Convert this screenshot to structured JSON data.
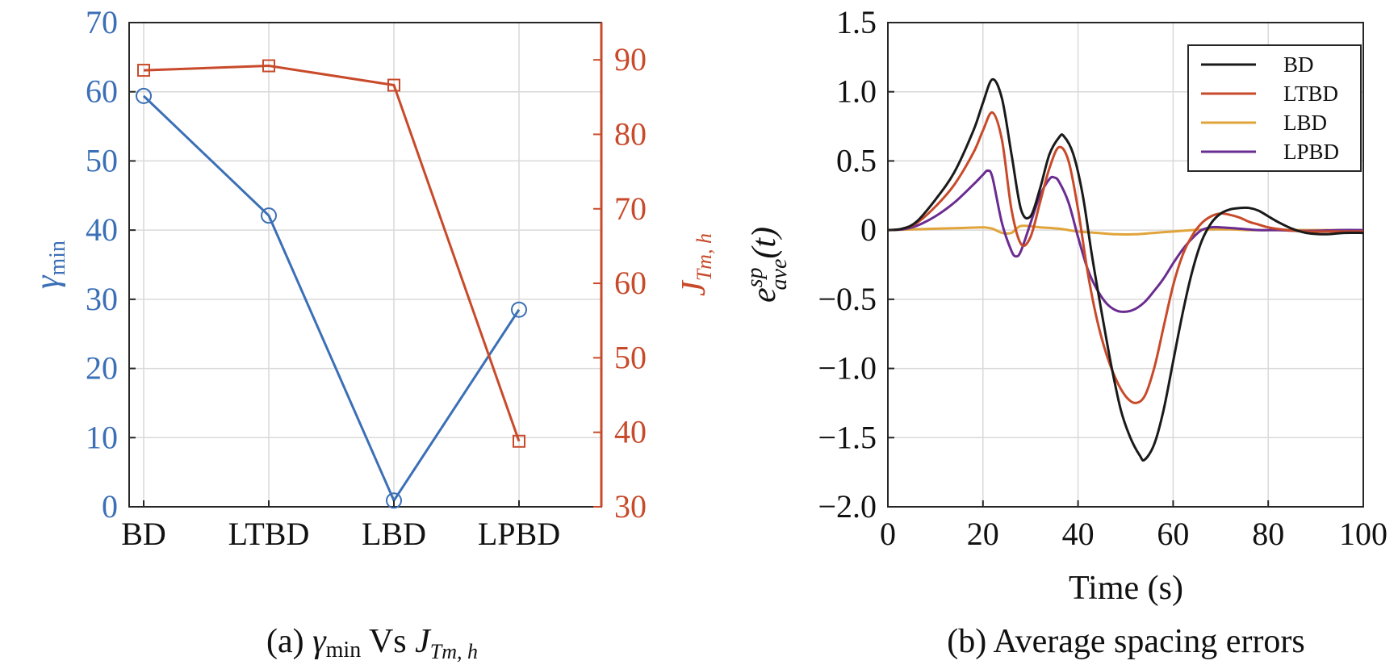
{
  "chart_data": [
    {
      "type": "line",
      "caption": {
        "prefix": "(a) ",
        "sym": "γ",
        "sub": "min",
        "mid": " Vs ",
        "sym2": "J",
        "sub2": "Tm, h"
      },
      "categories": [
        "BD",
        "LTBD",
        "LBD",
        "LPBD"
      ],
      "left_axis": {
        "label_sym": "γ",
        "label_sub": "min",
        "ylim": [
          0,
          70
        ],
        "ticks": [
          0,
          10,
          20,
          30,
          40,
          50,
          60,
          70
        ],
        "color": "#3b6fb6"
      },
      "right_axis": {
        "label_sym": "J",
        "label_sub": "Tm, h",
        "ylim": [
          30,
          95
        ],
        "ticks": [
          30,
          40,
          50,
          60,
          70,
          80,
          90
        ],
        "color": "#c84a2a"
      },
      "series": [
        {
          "axis": "left",
          "marker": "circle",
          "color": "#3b6fb6",
          "values": [
            59.4,
            42.1,
            0.9,
            28.5
          ]
        },
        {
          "axis": "right",
          "marker": "square",
          "color": "#c84a2a",
          "values": [
            88.6,
            89.2,
            86.6,
            38.8
          ]
        }
      ],
      "grid": true
    },
    {
      "type": "line",
      "caption": "(b) Average spacing errors",
      "xlabel": "Time (s)",
      "ylabel": {
        "base": "e",
        "sup": "sp",
        "sub": "ave",
        "tail": "(t)"
      },
      "xlim": [
        0,
        100
      ],
      "ylim": [
        -2.0,
        1.5
      ],
      "xticks": [
        0,
        20,
        40,
        60,
        80,
        100
      ],
      "yticks": [
        -2.0,
        -1.5,
        -1.0,
        -0.5,
        0,
        0.5,
        1.0,
        1.5
      ],
      "ytick_labels": [
        "−2.0",
        "−1.5",
        "−1.0",
        "−0.5",
        "0",
        "0.5",
        "1.0",
        "1.5"
      ],
      "legend_position": "top-right",
      "grid": true,
      "series": [
        {
          "name": "BD",
          "color": "#1a1a1a",
          "x": [
            0,
            3,
            6,
            10,
            14,
            18,
            20,
            22,
            24,
            26,
            28,
            30,
            32,
            34,
            36,
            37,
            39,
            41,
            43,
            45,
            47,
            49,
            51,
            53,
            54,
            56,
            58,
            60,
            62,
            64,
            66,
            68,
            70,
            72,
            74,
            76,
            78,
            80,
            82,
            85,
            88,
            92,
            96,
            100
          ],
          "y": [
            0,
            0.01,
            0.06,
            0.22,
            0.42,
            0.72,
            0.92,
            1.09,
            0.95,
            0.55,
            0.15,
            0.1,
            0.3,
            0.55,
            0.67,
            0.68,
            0.55,
            0.25,
            -0.2,
            -0.6,
            -0.98,
            -1.3,
            -1.5,
            -1.63,
            -1.66,
            -1.55,
            -1.3,
            -0.95,
            -0.6,
            -0.3,
            -0.08,
            0.05,
            0.12,
            0.15,
            0.16,
            0.16,
            0.14,
            0.1,
            0.06,
            0.01,
            -0.02,
            -0.03,
            -0.02,
            -0.02
          ]
        },
        {
          "name": "LTBD",
          "color": "#c84a2a",
          "x": [
            0,
            3,
            6,
            10,
            14,
            18,
            20,
            22,
            24,
            26,
            28,
            30,
            32,
            34,
            36,
            38,
            40,
            42,
            44,
            46,
            48,
            50,
            52,
            54,
            56,
            58,
            60,
            62,
            64,
            66,
            68,
            70,
            72,
            74,
            76,
            78,
            80,
            84,
            88,
            92,
            96,
            100
          ],
          "y": [
            0,
            0.01,
            0.05,
            0.17,
            0.33,
            0.56,
            0.72,
            0.85,
            0.65,
            0.15,
            -0.1,
            -0.05,
            0.2,
            0.45,
            0.6,
            0.5,
            0.15,
            -0.3,
            -0.65,
            -0.9,
            -1.08,
            -1.2,
            -1.25,
            -1.2,
            -1.0,
            -0.7,
            -0.4,
            -0.18,
            -0.04,
            0.05,
            0.1,
            0.12,
            0.11,
            0.09,
            0.06,
            0.04,
            0.02,
            0,
            -0.01,
            -0.01,
            -0.01,
            -0.01
          ]
        },
        {
          "name": "LBD",
          "color": "#e0a43a",
          "x": [
            0,
            5,
            10,
            15,
            20,
            22,
            24,
            26,
            28,
            32,
            36,
            40,
            44,
            48,
            52,
            56,
            60,
            64,
            68,
            72,
            76,
            80,
            85,
            90,
            95,
            100
          ],
          "y": [
            0,
            0.005,
            0.01,
            0.015,
            0.02,
            0.01,
            -0.02,
            -0.02,
            0.03,
            0.02,
            0.01,
            -0.01,
            -0.02,
            -0.03,
            -0.03,
            -0.02,
            -0.01,
            0,
            0.005,
            0.005,
            0,
            0,
            0,
            0,
            0,
            0
          ]
        },
        {
          "name": "LPBD",
          "color": "#6a2c91",
          "x": [
            0,
            3,
            6,
            10,
            14,
            18,
            20,
            21,
            22,
            24,
            26,
            27,
            28,
            30,
            32,
            34,
            35,
            36,
            38,
            40,
            42,
            44,
            46,
            48,
            50,
            52,
            54,
            56,
            58,
            60,
            62,
            64,
            66,
            68,
            70,
            74,
            78,
            82,
            86,
            90,
            95,
            100
          ],
          "y": [
            0,
            0.005,
            0.03,
            0.1,
            0.2,
            0.33,
            0.4,
            0.43,
            0.38,
            0.05,
            -0.15,
            -0.19,
            -0.15,
            0.05,
            0.25,
            0.37,
            0.38,
            0.35,
            0.2,
            -0.05,
            -0.28,
            -0.43,
            -0.53,
            -0.58,
            -0.59,
            -0.57,
            -0.52,
            -0.44,
            -0.35,
            -0.24,
            -0.14,
            -0.06,
            0,
            0.02,
            0.02,
            0.01,
            0,
            0,
            -0.005,
            -0.005,
            0,
            0
          ]
        }
      ]
    }
  ]
}
